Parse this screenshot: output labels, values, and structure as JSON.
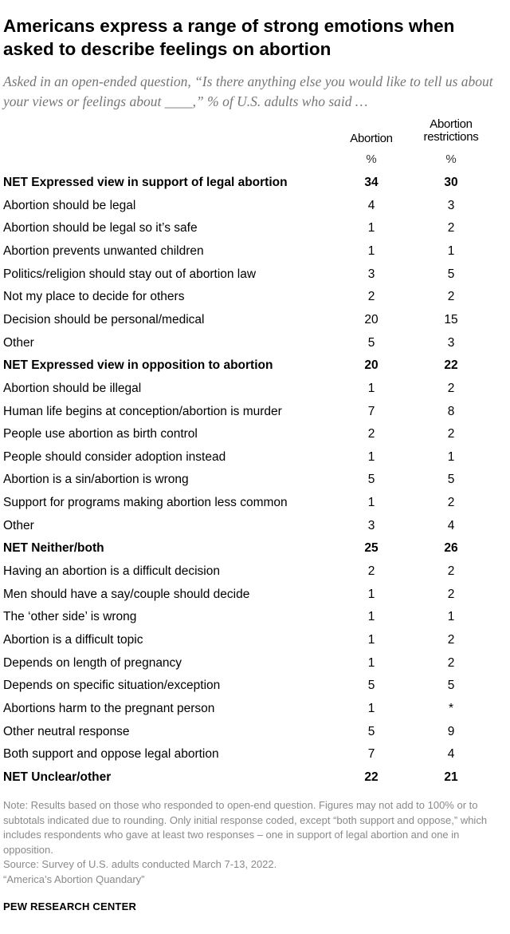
{
  "title": "Americans express a range of strong emotions when asked to describe feelings on abortion",
  "subtitle": "Asked in an open-ended question, “Is there anything else you would like to tell us about your views or feelings about ____,” % of U.S. adults who said …",
  "columns": {
    "col1": "Abortion",
    "col2_line1": "Abortion",
    "col2_line2": "restrictions",
    "unit1": "%",
    "unit2": "%"
  },
  "rows": [
    {
      "label": "NET Expressed view in support of legal abortion",
      "v1": "34",
      "v2": "30",
      "net": true
    },
    {
      "label": "Abortion should be legal",
      "v1": "4",
      "v2": "3"
    },
    {
      "label": "Abortion should be legal so it’s safe",
      "v1": "1",
      "v2": "2"
    },
    {
      "label": "Abortion prevents unwanted children",
      "v1": "1",
      "v2": "1"
    },
    {
      "label": "Politics/religion should stay out of abortion law",
      "v1": "3",
      "v2": "5"
    },
    {
      "label": "Not my place to decide for others",
      "v1": "2",
      "v2": "2"
    },
    {
      "label": "Decision should be personal/medical",
      "v1": "20",
      "v2": "15"
    },
    {
      "label": "Other",
      "v1": "5",
      "v2": "3"
    },
    {
      "label": "NET Expressed view in opposition to abortion",
      "v1": "20",
      "v2": "22",
      "net": true
    },
    {
      "label": "Abortion should be illegal",
      "v1": "1",
      "v2": "2"
    },
    {
      "label": "Human life begins at conception/abortion is murder",
      "v1": "7",
      "v2": "8"
    },
    {
      "label": "People use abortion as birth control",
      "v1": "2",
      "v2": "2"
    },
    {
      "label": "People should consider adoption instead",
      "v1": "1",
      "v2": "1"
    },
    {
      "label": "Abortion is a sin/abortion is wrong",
      "v1": "5",
      "v2": "5"
    },
    {
      "label": "Support for programs making abortion less common",
      "v1": "1",
      "v2": "2"
    },
    {
      "label": "Other",
      "v1": "3",
      "v2": "4"
    },
    {
      "label": "NET Neither/both",
      "v1": "25",
      "v2": "26",
      "net": true
    },
    {
      "label": "Having an abortion is a difficult decision",
      "v1": "2",
      "v2": "2"
    },
    {
      "label": "Men should have a say/couple should decide",
      "v1": "1",
      "v2": "2"
    },
    {
      "label": "The ‘other side’ is wrong",
      "v1": "1",
      "v2": "1"
    },
    {
      "label": "Abortion is a difficult topic",
      "v1": "1",
      "v2": "2"
    },
    {
      "label": "Depends on length of pregnancy",
      "v1": "1",
      "v2": "2"
    },
    {
      "label": "Depends on specific situation/exception",
      "v1": "5",
      "v2": "5"
    },
    {
      "label": "Abortions harm to the pregnant person",
      "v1": "1",
      "v2": "*"
    },
    {
      "label": "Other neutral response",
      "v1": "5",
      "v2": "9"
    },
    {
      "label": "Both support and oppose legal abortion",
      "v1": "7",
      "v2": "4"
    },
    {
      "label": "NET Unclear/other",
      "v1": "22",
      "v2": "21",
      "net": true
    }
  ],
  "notes": {
    "note": "Note: Results based on those who responded to open-end question. Figures may not add to 100% or to subtotals indicated due to rounding. Only initial response coded, except “both support and oppose,” which includes respondents who gave at least two responses – one in support of legal abortion and one in opposition.",
    "source": "Source: Survey of U.S. adults conducted March 7-13, 2022.",
    "report": "“America’s Abortion Quandary”"
  },
  "brand": "PEW RESEARCH CENTER"
}
